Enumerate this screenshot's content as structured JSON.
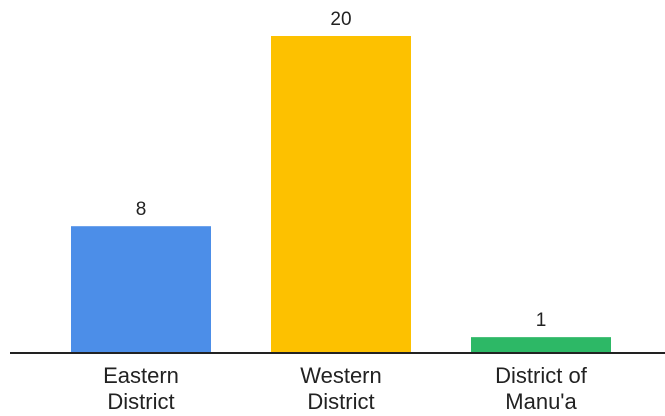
{
  "chart_data": {
    "type": "bar",
    "title": "",
    "xlabel": "",
    "ylabel": "",
    "categories": [
      [
        "Eastern",
        "District"
      ],
      [
        "Western",
        "District"
      ],
      [
        "District of",
        "Manu'a"
      ]
    ],
    "values": [
      8,
      20,
      1
    ],
    "colors": [
      "#4c8ee8",
      "#fdc100",
      "#2db866"
    ],
    "ylim": [
      0,
      20
    ],
    "grid": false,
    "legend": "none",
    "axis_color": "#222222"
  }
}
